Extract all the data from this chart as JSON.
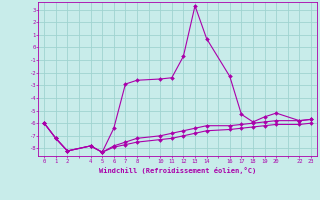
{
  "xlabel": "Windchill (Refroidissement éolien,°C)",
  "background_color": "#c8ecea",
  "grid_color": "#a0d4d0",
  "line_color": "#aa00aa",
  "ylim": [
    -8.6,
    3.6
  ],
  "xlim": [
    -0.5,
    23.5
  ],
  "yticks": [
    3,
    2,
    1,
    0,
    -1,
    -2,
    -3,
    -4,
    -5,
    -6,
    -7,
    -8
  ],
  "xtick_show": [
    0,
    1,
    2,
    4,
    5,
    6,
    7,
    8,
    10,
    11,
    12,
    13,
    14,
    16,
    17,
    18,
    19,
    20,
    22,
    23
  ],
  "s1_x": [
    0,
    1,
    2,
    4,
    5,
    6,
    7,
    8,
    10,
    11,
    12,
    13,
    14,
    16,
    17,
    18,
    19,
    20,
    22,
    23
  ],
  "s1_y": [
    -6.0,
    -7.2,
    -8.2,
    -7.8,
    -8.3,
    -6.4,
    -2.9,
    -2.6,
    -2.5,
    -2.4,
    -0.7,
    3.3,
    0.7,
    -2.3,
    -5.3,
    -5.9,
    -5.5,
    -5.2,
    -5.8,
    -5.7
  ],
  "s2_x": [
    0,
    1,
    2,
    4,
    5,
    6,
    7,
    8,
    10,
    11,
    12,
    13,
    14,
    16,
    17,
    18,
    19,
    20,
    22,
    23
  ],
  "s2_y": [
    -6.0,
    -7.2,
    -8.2,
    -7.8,
    -8.3,
    -7.8,
    -7.5,
    -7.2,
    -7.0,
    -6.8,
    -6.6,
    -6.4,
    -6.2,
    -6.2,
    -6.1,
    -6.0,
    -5.9,
    -5.8,
    -5.8,
    -5.7
  ],
  "s3_x": [
    0,
    1,
    2,
    4,
    5,
    6,
    7,
    8,
    10,
    11,
    12,
    13,
    14,
    16,
    17,
    18,
    19,
    20,
    22,
    23
  ],
  "s3_y": [
    -6.0,
    -7.2,
    -8.2,
    -7.8,
    -8.3,
    -7.9,
    -7.7,
    -7.5,
    -7.3,
    -7.2,
    -7.0,
    -6.8,
    -6.6,
    -6.5,
    -6.4,
    -6.3,
    -6.2,
    -6.1,
    -6.1,
    -6.0
  ]
}
